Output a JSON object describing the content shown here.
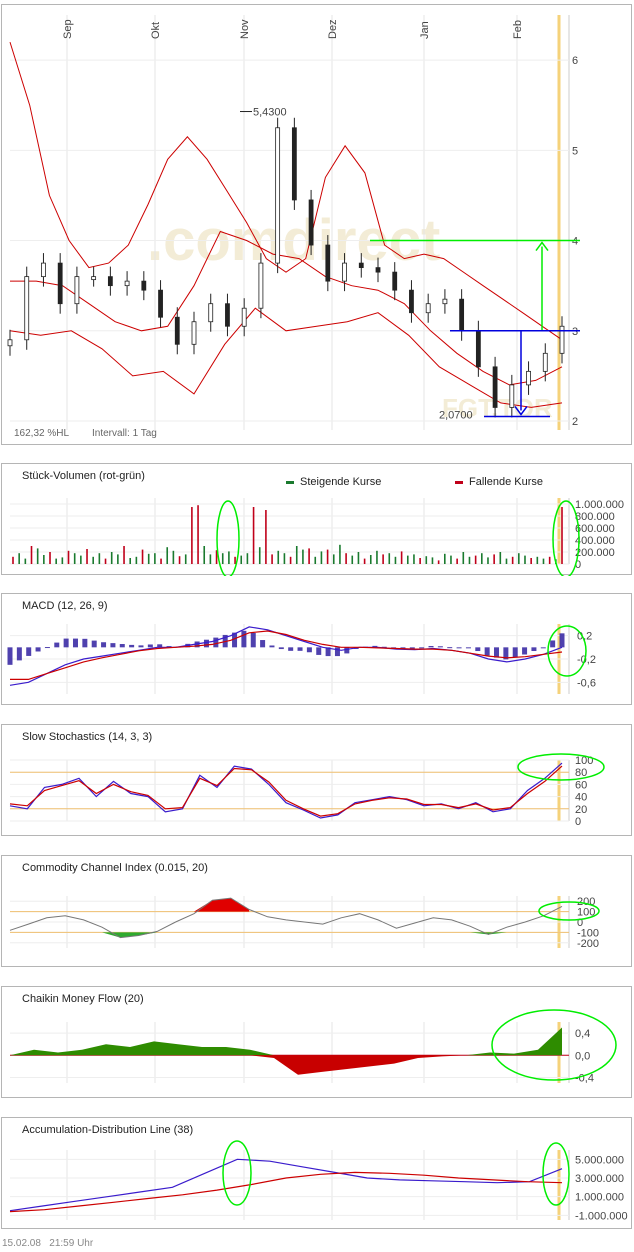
{
  "chart_data": [
    {
      "type": "candlestick",
      "title": "",
      "x_labels": [
        "Sep",
        "Okt",
        "Nov",
        "Dez",
        "Jan",
        "Feb"
      ],
      "y_ticks": [
        "6",
        "5",
        "4",
        "3",
        "2"
      ],
      "ylim": [
        1.9,
        6.5
      ],
      "footer_left": "162,32 %HL",
      "interval": "Intervall: 1 Tag",
      "annotations": {
        "high": "5,4300",
        "low": "2,0700"
      },
      "watermark": ".comdirect",
      "ticker_watermark": "FGT.TOR",
      "grid": true,
      "levels": {
        "upper_target": 4.0,
        "breakout": 3.0,
        "pattern_low": 2.05
      },
      "series": [
        {
          "name": "Kurs",
          "values": [
            2.9,
            3.6,
            3.75,
            3.3,
            3.6,
            3.6,
            3.5,
            3.55,
            3.45,
            3.15,
            2.85,
            3.1,
            3.3,
            3.05,
            3.25,
            3.75,
            5.25,
            4.45,
            3.95,
            3.55,
            3.75,
            3.7,
            3.65,
            3.45,
            3.2,
            3.3,
            3.35,
            3.0,
            2.6,
            2.15,
            2.4,
            2.55,
            2.75,
            3.05
          ]
        },
        {
          "name": "Bollinger oben",
          "values": [
            6.2,
            5.5,
            4.5,
            4.0,
            3.7,
            3.75,
            3.95,
            4.4,
            4.9,
            5.15,
            4.9,
            4.55,
            4.2,
            3.8,
            3.65,
            3.8,
            4.7,
            5.05,
            4.75,
            3.95,
            3.8,
            3.85,
            3.8,
            3.65,
            3.5,
            3.35,
            3.2,
            3.05,
            2.9
          ]
        },
        {
          "name": "Bollinger Mitte",
          "values": [
            3.55,
            3.55,
            3.5,
            3.3,
            3.1,
            3.0,
            3.05,
            3.5,
            4.1,
            4.0,
            3.85,
            3.8,
            3.6,
            3.5,
            3.45,
            3.3,
            3.0,
            2.75,
            2.55,
            2.4,
            2.45,
            2.6
          ]
        },
        {
          "name": "Bollinger unten",
          "values": [
            3.0,
            2.95,
            3.0,
            2.8,
            2.5,
            2.55,
            2.3,
            2.85,
            3.25,
            3.0,
            3.05,
            3.1,
            3.2,
            2.95,
            2.6,
            2.4,
            2.2,
            2.15,
            2.2
          ]
        }
      ]
    },
    {
      "type": "bar",
      "title": "Stück-Volumen (rot-grün)",
      "legend": [
        "Steigende Kurse",
        "Fallende Kurse"
      ],
      "y_ticks": [
        "1.000.000",
        "800.000",
        "600.000",
        "400.000",
        "200.000",
        "0"
      ],
      "ylim": [
        0,
        1100000
      ],
      "values": [
        120000,
        180000,
        90000,
        300000,
        260000,
        150000,
        200000,
        90000,
        110000,
        220000,
        180000,
        140000,
        250000,
        120000,
        180000,
        90000,
        200000,
        160000,
        300000,
        100000,
        120000,
        240000,
        170000,
        180000,
        90000,
        280000,
        220000,
        130000,
        160000,
        950000,
        980000,
        300000,
        160000,
        230000,
        180000,
        210000,
        120000,
        140000,
        180000,
        950000,
        280000,
        900000,
        160000,
        220000,
        180000,
        120000,
        300000,
        240000,
        260000,
        120000,
        210000,
        240000,
        160000,
        320000,
        180000,
        140000,
        200000,
        90000,
        150000,
        220000,
        160000,
        180000,
        120000,
        210000,
        140000,
        160000,
        100000,
        130000,
        110000,
        60000,
        170000,
        140000,
        90000,
        200000,
        120000,
        140000,
        180000,
        110000,
        160000,
        200000,
        90000,
        120000,
        180000,
        140000,
        100000,
        120000,
        90000,
        120000,
        80000,
        950000
      ]
    },
    {
      "type": "line",
      "title": "MACD (12, 26, 9)",
      "y_ticks": [
        "0,2",
        "-0,2",
        "-0,6"
      ],
      "ylim": [
        -0.8,
        0.4
      ],
      "series": [
        {
          "name": "MACD",
          "values": [
            -0.65,
            -0.6,
            -0.45,
            -0.3,
            -0.2,
            -0.15,
            -0.1,
            -0.05,
            0.0,
            0.0,
            0.05,
            0.1,
            0.2,
            0.35,
            0.3,
            0.2,
            0.1,
            0.0,
            -0.05,
            0.0,
            0.0,
            -0.03,
            -0.04,
            -0.02,
            -0.05,
            -0.1,
            -0.2,
            -0.25,
            -0.2,
            -0.12,
            0.0
          ]
        },
        {
          "name": "Signal",
          "values": [
            -0.55,
            -0.55,
            -0.45,
            -0.35,
            -0.25,
            -0.18,
            -0.12,
            -0.06,
            -0.02,
            0.0,
            0.02,
            0.05,
            0.12,
            0.25,
            0.28,
            0.22,
            0.12,
            0.05,
            0.0,
            0.0,
            -0.01,
            -0.02,
            -0.03,
            -0.03,
            -0.05,
            -0.1,
            -0.15,
            -0.18,
            -0.16,
            -0.12,
            -0.08
          ]
        }
      ]
    },
    {
      "type": "line",
      "title": "Slow Stochastics (14, 3, 3)",
      "y_ticks": [
        "100",
        "80",
        "60",
        "40",
        "20",
        "0"
      ],
      "ylim": [
        0,
        100
      ],
      "series": [
        {
          "name": "%K",
          "values": [
            25,
            20,
            55,
            60,
            70,
            40,
            65,
            45,
            40,
            15,
            20,
            75,
            55,
            90,
            85,
            60,
            30,
            18,
            5,
            10,
            30,
            35,
            40,
            35,
            25,
            28,
            20,
            30,
            15,
            20,
            50,
            70,
            95
          ]
        },
        {
          "name": "%D",
          "values": [
            28,
            25,
            50,
            58,
            66,
            45,
            60,
            48,
            42,
            20,
            22,
            70,
            58,
            86,
            84,
            64,
            34,
            20,
            8,
            12,
            28,
            34,
            38,
            36,
            27,
            27,
            22,
            28,
            18,
            22,
            45,
            65,
            90
          ]
        }
      ]
    },
    {
      "type": "line",
      "title": "Commodity Channel Index (0.015, 20)",
      "y_ticks": [
        "200",
        "100",
        "0",
        "-100",
        "-200"
      ],
      "ylim": [
        -250,
        250
      ],
      "values": [
        -80,
        -20,
        40,
        60,
        20,
        -50,
        -150,
        -130,
        -90,
        0,
        80,
        210,
        230,
        120,
        50,
        20,
        0,
        -20,
        40,
        80,
        20,
        -60,
        -10,
        40,
        20,
        -40,
        -120,
        -50,
        0,
        60,
        150
      ]
    },
    {
      "type": "area",
      "title": "Chaikin Money Flow (20)",
      "y_ticks": [
        "0,4",
        "0,0",
        "-0,4"
      ],
      "ylim": [
        -0.5,
        0.6
      ],
      "values": [
        0.0,
        0.1,
        0.05,
        0.1,
        0.2,
        0.15,
        0.25,
        0.2,
        0.15,
        0.15,
        0.1,
        -0.05,
        -0.35,
        -0.3,
        -0.25,
        -0.2,
        -0.15,
        -0.05,
        -0.02,
        0.0,
        0.05,
        0.03,
        0.1,
        0.5
      ]
    },
    {
      "type": "line",
      "title": "Accumulation-Distribution Line (38)",
      "y_ticks": [
        "5.000.000",
        "3.000.000",
        "1.000.000",
        "-1.000.000"
      ],
      "ylim": [
        -1500000,
        6000000
      ],
      "series": [
        {
          "name": "A/D",
          "values": [
            -500000,
            0,
            500000,
            1000000,
            1500000,
            2000000,
            3500000,
            5000000,
            4800000,
            4200000,
            3600000,
            3000000,
            2800000,
            2700000,
            2600000,
            2500000,
            2600000,
            4000000
          ]
        },
        {
          "name": "MA",
          "values": [
            -600000,
            -400000,
            0,
            400000,
            800000,
            1200000,
            1700000,
            2300000,
            3000000,
            3400000,
            3600000,
            3500000,
            3300000,
            3000000,
            2800000,
            2600000,
            2500000
          ]
        }
      ]
    }
  ],
  "footer": {
    "date": "15.02.08",
    "time": "21:59 Uhr"
  },
  "colors": {
    "up": "#1a7a2e",
    "down": "#c0001a",
    "band": "#cc0000",
    "macd": "#3a1ccc",
    "highlight": "#00ee00",
    "hline_blue": "#0000dd",
    "cursor": "#f5d27a"
  }
}
